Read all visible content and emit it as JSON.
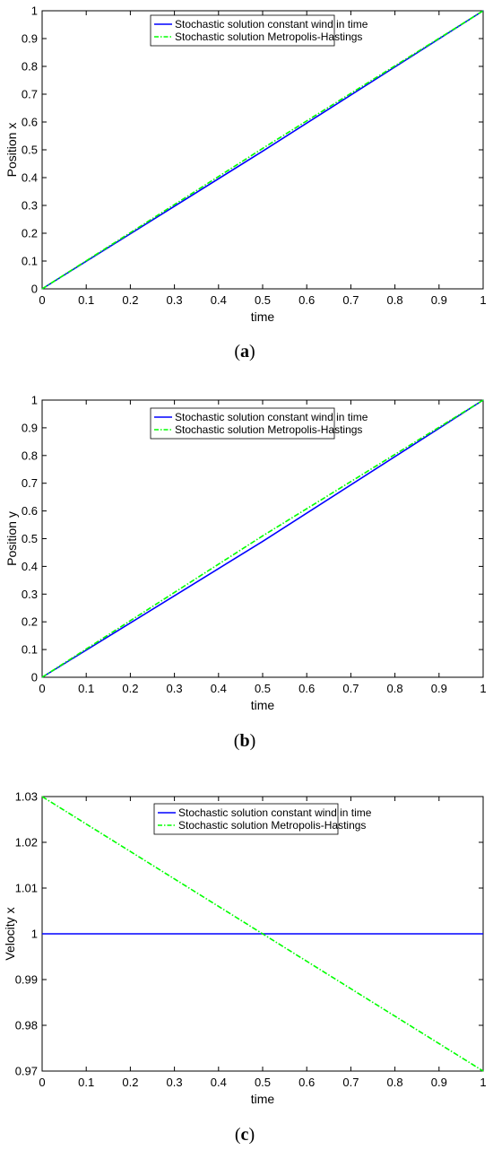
{
  "chart_data": [
    {
      "type": "line",
      "caption": "(a)",
      "xlabel": "time",
      "ylabel": "Position x",
      "xlim": [
        0,
        1
      ],
      "ylim": [
        0,
        1
      ],
      "xticks": [
        "0",
        "0.1",
        "0.2",
        "0.3",
        "0.4",
        "0.5",
        "0.6",
        "0.7",
        "0.8",
        "0.9",
        "1"
      ],
      "yticks": [
        "0",
        "0.1",
        "0.2",
        "0.3",
        "0.4",
        "0.5",
        "0.6",
        "0.7",
        "0.8",
        "0.9",
        "1"
      ],
      "legend_position": "top-center",
      "grid": false,
      "series": [
        {
          "name": "Stochastic solution constant wind in time",
          "color": "#0000ff",
          "style": "solid",
          "x": [
            0,
            0.5,
            1
          ],
          "y": [
            0,
            0.495,
            1
          ]
        },
        {
          "name": "Stochastic solution Metropolis-Hastings",
          "color": "#00ff00",
          "style": "dash-dot",
          "x": [
            0,
            0.5,
            1
          ],
          "y": [
            0,
            0.505,
            1
          ]
        }
      ]
    },
    {
      "type": "line",
      "caption": "(b)",
      "xlabel": "time",
      "ylabel": "Position y",
      "xlim": [
        0,
        1
      ],
      "ylim": [
        0,
        1
      ],
      "xticks": [
        "0",
        "0.1",
        "0.2",
        "0.3",
        "0.4",
        "0.5",
        "0.6",
        "0.7",
        "0.8",
        "0.9",
        "1"
      ],
      "yticks": [
        "0",
        "0.1",
        "0.2",
        "0.3",
        "0.4",
        "0.5",
        "0.6",
        "0.7",
        "0.8",
        "0.9",
        "1"
      ],
      "legend_position": "top-center",
      "grid": false,
      "series": [
        {
          "name": "Stochastic solution constant wind in time",
          "color": "#0000ff",
          "style": "solid",
          "x": [
            0,
            0.5,
            1
          ],
          "y": [
            0,
            0.49,
            1
          ]
        },
        {
          "name": "Stochastic solution Metropolis-Hastings",
          "color": "#00ff00",
          "style": "dash-dot",
          "x": [
            0,
            0.5,
            1
          ],
          "y": [
            0,
            0.51,
            1
          ]
        }
      ]
    },
    {
      "type": "line",
      "caption": "(c)",
      "xlabel": "time",
      "ylabel": "Velocity x",
      "xlim": [
        0,
        1
      ],
      "ylim": [
        0.97,
        1.03
      ],
      "xticks": [
        "0",
        "0.1",
        "0.2",
        "0.3",
        "0.4",
        "0.5",
        "0.6",
        "0.7",
        "0.8",
        "0.9",
        "1"
      ],
      "yticks": [
        "0.97",
        "0.98",
        "0.99",
        "1",
        "1.01",
        "1.02",
        "1.03"
      ],
      "legend_position": "top-center",
      "grid": false,
      "series": [
        {
          "name": "Stochastic solution constant wind in time",
          "color": "#0000ff",
          "style": "solid",
          "x": [
            0,
            1
          ],
          "y": [
            1,
            1
          ]
        },
        {
          "name": "Stochastic solution Metropolis-Hastings",
          "color": "#00ff00",
          "style": "dash-dot",
          "x": [
            0,
            1
          ],
          "y": [
            1.03,
            0.97
          ]
        }
      ]
    }
  ]
}
